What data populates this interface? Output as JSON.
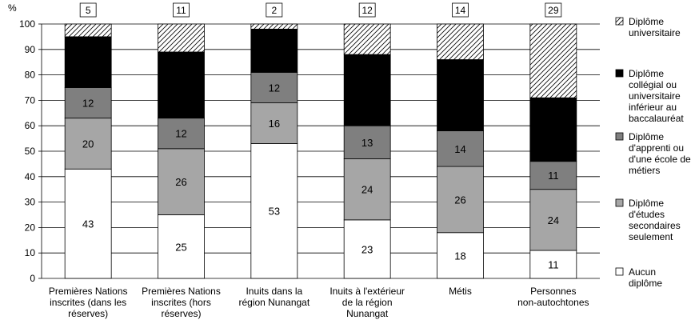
{
  "chart_data": {
    "type": "bar",
    "stacked": true,
    "y_unit_label": "%",
    "ylim": [
      0,
      100
    ],
    "yticks": [
      0,
      10,
      20,
      30,
      40,
      50,
      60,
      70,
      80,
      90,
      100
    ],
    "grid": true,
    "legend_position": "right",
    "categories": [
      "Premières Nations inscrites (dans les réserves)",
      "Premières Nations inscrites (hors réserves)",
      "Inuits dans la région Nunangat",
      "Inuits à l'extérieur de la région Nunangat",
      "Métis",
      "Personnes non-autochtones"
    ],
    "category_label_lines": [
      [
        "Premières Nations",
        "inscrites (dans les",
        "réserves)"
      ],
      [
        "Premières Nations",
        "inscrites (hors",
        "réserves)"
      ],
      [
        "Inuits dans la",
        "région Nunangat"
      ],
      [
        "Inuits à l'extérieur",
        "de la région",
        "Nunangat"
      ],
      [
        "Métis"
      ],
      [
        "Personnes",
        "non-autochtones"
      ]
    ],
    "top_boxed_values": [
      5,
      11,
      2,
      12,
      14,
      29
    ],
    "series": [
      {
        "name": "Aucun diplôme",
        "legend_lines": [
          "Aucun",
          "diplôme"
        ],
        "fill": "#ffffff",
        "label_color": "#000000",
        "values": [
          43,
          25,
          53,
          23,
          18,
          11
        ]
      },
      {
        "name": "Diplôme d'études secondaires seulement",
        "legend_lines": [
          "Diplôme",
          "d'études",
          "secondaires",
          "seulement"
        ],
        "fill": "#a6a6a6",
        "label_color": "#000000",
        "values": [
          20,
          26,
          16,
          24,
          26,
          24
        ]
      },
      {
        "name": "Diplôme d'apprenti ou d'une école de métiers",
        "legend_lines": [
          "Diplôme",
          "d'apprenti ou",
          "d'une école de",
          "métiers"
        ],
        "fill": "#7f7f7f",
        "label_color": "#ffffff",
        "values": [
          12,
          12,
          12,
          13,
          14,
          11
        ]
      },
      {
        "name": "Diplôme collégial ou universitaire inférieur au baccalauréat",
        "legend_lines": [
          "Diplôme",
          "collégial ou",
          "universitaire",
          "inférieur au",
          "baccalauréat"
        ],
        "fill": "#000000",
        "label_color": "#ffffff",
        "values": [
          20,
          26,
          17,
          28,
          28,
          25
        ]
      },
      {
        "name": "Diplôme universitaire",
        "legend_lines": [
          "Diplôme",
          "universitaire"
        ],
        "fill": "hatch",
        "label_color": "#000000",
        "values": [
          5,
          11,
          2,
          12,
          14,
          29
        ]
      }
    ]
  }
}
